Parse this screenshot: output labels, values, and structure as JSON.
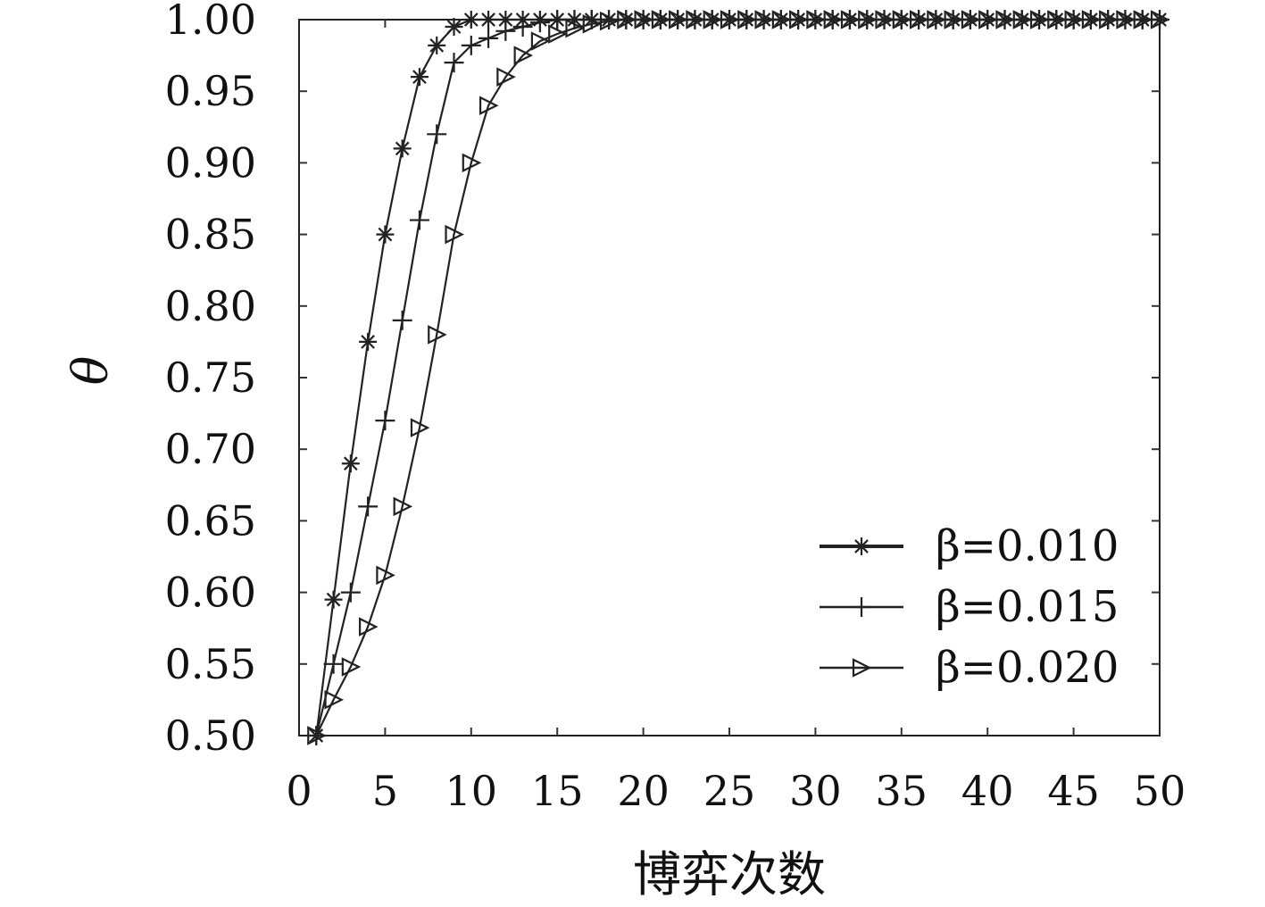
{
  "chart_data": {
    "type": "line",
    "title": "",
    "xlabel": "博弈次数",
    "ylabel": "θ",
    "xlim": [
      0,
      50
    ],
    "ylim": [
      0.5,
      1.0
    ],
    "x_ticks": [
      "0",
      "5",
      "10",
      "15",
      "20",
      "25",
      "30",
      "35",
      "40",
      "45",
      "50"
    ],
    "y_ticks": [
      "0.50",
      "0.55",
      "0.60",
      "0.65",
      "0.70",
      "0.75",
      "0.80",
      "0.85",
      "0.90",
      "0.95",
      "1.00"
    ],
    "grid": false,
    "legend_position": "bottom-right",
    "x": [
      1,
      2,
      3,
      4,
      5,
      6,
      7,
      8,
      9,
      10,
      11,
      12,
      13,
      14,
      15,
      16,
      17,
      18,
      19,
      20,
      21,
      22,
      23,
      24,
      25,
      26,
      27,
      28,
      29,
      30,
      31,
      32,
      33,
      34,
      35,
      36,
      37,
      38,
      39,
      40,
      41,
      42,
      43,
      44,
      45,
      46,
      47,
      48,
      49,
      50
    ],
    "series": [
      {
        "name": "β=0.010",
        "marker": "asterisk",
        "values": [
          0.5,
          0.595,
          0.69,
          0.775,
          0.85,
          0.91,
          0.96,
          0.982,
          0.995,
          1.0,
          1.0,
          1.0,
          1.0,
          1.0,
          1.0,
          1.0,
          1.0,
          1.0,
          1.0,
          1.0,
          1.0,
          1.0,
          1.0,
          1.0,
          1.0,
          1.0,
          1.0,
          1.0,
          1.0,
          1.0,
          1.0,
          1.0,
          1.0,
          1.0,
          1.0,
          1.0,
          1.0,
          1.0,
          1.0,
          1.0,
          1.0,
          1.0,
          1.0,
          1.0,
          1.0,
          1.0,
          1.0,
          1.0,
          1.0,
          1.0
        ]
      },
      {
        "name": "β=0.015",
        "marker": "plus",
        "values": [
          0.5,
          0.55,
          0.6,
          0.66,
          0.72,
          0.79,
          0.86,
          0.92,
          0.97,
          0.982,
          0.987,
          0.992,
          0.995,
          0.998,
          1.0,
          1.0,
          1.0,
          1.0,
          1.0,
          1.0,
          1.0,
          1.0,
          1.0,
          1.0,
          1.0,
          1.0,
          1.0,
          1.0,
          1.0,
          1.0,
          1.0,
          1.0,
          1.0,
          1.0,
          1.0,
          1.0,
          1.0,
          1.0,
          1.0,
          1.0,
          1.0,
          1.0,
          1.0,
          1.0,
          1.0,
          1.0,
          1.0,
          1.0,
          1.0,
          1.0
        ]
      },
      {
        "name": "β=0.020",
        "marker": "triangle-right",
        "values": [
          0.5,
          0.525,
          0.548,
          0.576,
          0.612,
          0.66,
          0.715,
          0.78,
          0.85,
          0.9,
          0.94,
          0.96,
          0.975,
          0.985,
          0.99,
          0.994,
          0.997,
          0.999,
          1.0,
          1.0,
          1.0,
          1.0,
          1.0,
          1.0,
          1.0,
          1.0,
          1.0,
          1.0,
          1.0,
          1.0,
          1.0,
          1.0,
          1.0,
          1.0,
          1.0,
          1.0,
          1.0,
          1.0,
          1.0,
          1.0,
          1.0,
          1.0,
          1.0,
          1.0,
          1.0,
          1.0,
          1.0,
          1.0,
          1.0,
          1.0
        ]
      }
    ]
  }
}
